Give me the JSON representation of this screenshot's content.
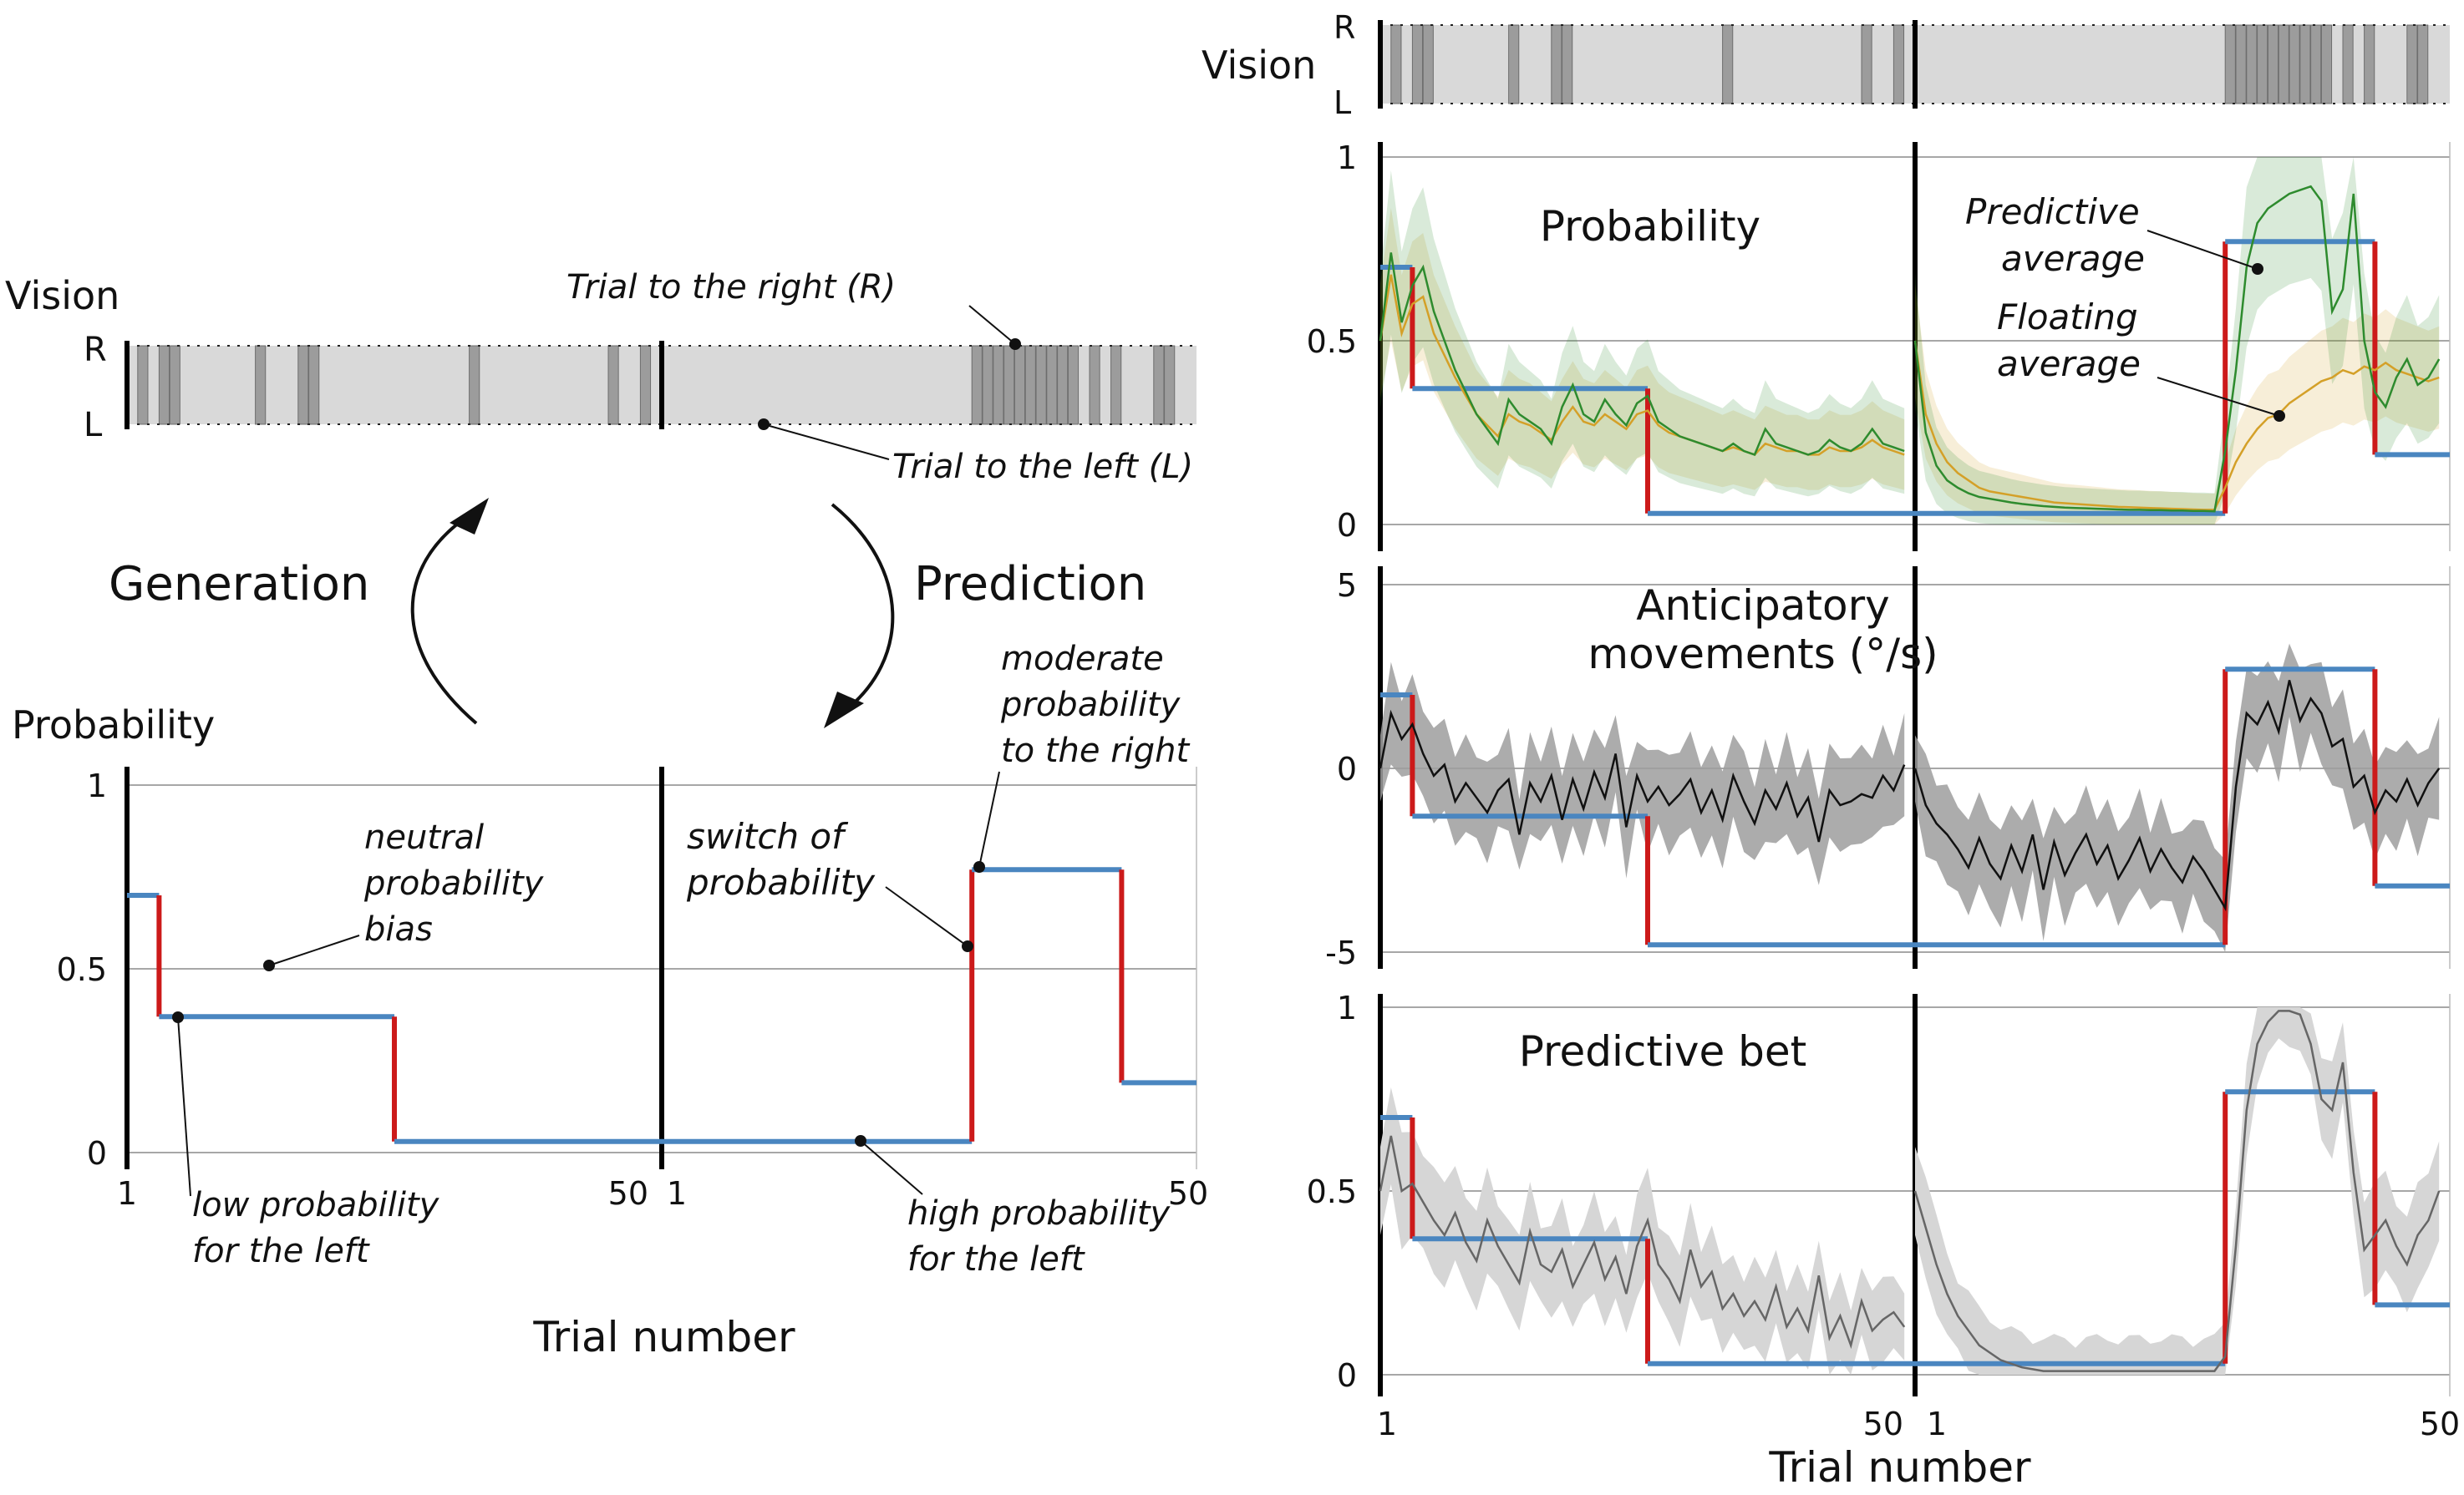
{
  "labels": {
    "vision": "Vision",
    "r": "R",
    "l": "L",
    "probability": "Probability",
    "trial_number": "Trial number",
    "generation": "Generation",
    "prediction": "Prediction",
    "ann_right": "Trial to the right (R)",
    "ann_left": "Trial to the left (L)",
    "ann_neutral": [
      "neutral",
      "probability",
      "bias"
    ],
    "ann_switch": [
      "switch of",
      "probability"
    ],
    "ann_moderate": [
      "moderate",
      "probability",
      "to the right"
    ],
    "ann_low": [
      "low probability",
      "for the left"
    ],
    "ann_high": [
      "high probability",
      "for the left"
    ],
    "panel_prob": "Probability",
    "panel_antic": [
      "Anticipatory",
      "movements (°/s)"
    ],
    "panel_bet": "Predictive bet",
    "ann_pred_avg": [
      "Predictive",
      "average"
    ],
    "ann_float_avg": [
      "Floating",
      "average"
    ]
  },
  "colors": {
    "blue": "#4a86c0",
    "red": "#cc1a1a",
    "green": "#2e8b2e",
    "orange": "#d4a028",
    "grey_band": "#9e9e9e",
    "light_band": "#d6d6d6",
    "vision_bg": "#d9d9d9",
    "vision_right": "#9c9c9c"
  },
  "chart_data": [
    {
      "id": "left-schematic",
      "type": "line",
      "xlabel": "Trial number",
      "ylabel": "Probability",
      "ylim": [
        0,
        1
      ],
      "yticks": [
        "0",
        "0.5",
        "1"
      ],
      "xticks": [
        "1",
        "50",
        "1",
        "50"
      ],
      "blocks": 2,
      "trials_per_block": 50,
      "true_probability": [
        {
          "block": 1,
          "from": 1,
          "to": 4,
          "p": 0.7
        },
        {
          "block": 1,
          "from": 4,
          "to": 26,
          "p": 0.37
        },
        {
          "block": 1,
          "from": 26,
          "to": 51,
          "p": 0.03
        },
        {
          "block": 2,
          "from": 1,
          "to": 30,
          "p": 0.03
        },
        {
          "block": 2,
          "from": 30,
          "to": 44,
          "p": 0.77
        },
        {
          "block": 2,
          "from": 44,
          "to": 51,
          "p": 0.19
        }
      ]
    },
    {
      "id": "vision-sequence",
      "type": "heatmap",
      "right_trials_block1": [
        2,
        4,
        5,
        13,
        17,
        18,
        33,
        46,
        49
      ],
      "right_trials_block2": [
        30,
        31,
        32,
        33,
        34,
        35,
        36,
        37,
        38,
        39,
        41,
        43,
        47,
        48
      ]
    },
    {
      "id": "probability-panel",
      "type": "line",
      "title": "Probability",
      "ylim": [
        0,
        1
      ],
      "yticks": [
        "0",
        "0.5",
        "1"
      ],
      "series": [
        {
          "name": "Predictive average",
          "block1": [
            0.5,
            0.74,
            0.55,
            0.65,
            0.7,
            0.58,
            0.5,
            0.42,
            0.36,
            0.3,
            0.26,
            0.22,
            0.34,
            0.3,
            0.28,
            0.26,
            0.22,
            0.32,
            0.38,
            0.3,
            0.28,
            0.34,
            0.3,
            0.27,
            0.33,
            0.35,
            0.28,
            0.26,
            0.24,
            0.23,
            0.22,
            0.21,
            0.2,
            0.22,
            0.2,
            0.19,
            0.26,
            0.22,
            0.21,
            0.2,
            0.19,
            0.2,
            0.23,
            0.21,
            0.2,
            0.22,
            0.26,
            0.22,
            0.21,
            0.2
          ],
          "block2": [
            0.5,
            0.25,
            0.16,
            0.12,
            0.1,
            0.085,
            0.075,
            0.07,
            0.065,
            0.06,
            0.056,
            0.053,
            0.05,
            0.048,
            0.046,
            0.045,
            0.044,
            0.043,
            0.042,
            0.041,
            0.04,
            0.04,
            0.039,
            0.039,
            0.038,
            0.038,
            0.037,
            0.037,
            0.036,
            0.2,
            0.42,
            0.7,
            0.82,
            0.86,
            0.88,
            0.9,
            0.91,
            0.92,
            0.88,
            0.58,
            0.64,
            0.9,
            0.5,
            0.36,
            0.32,
            0.4,
            0.45,
            0.38,
            0.4,
            0.45
          ]
        },
        {
          "name": "Floating average",
          "block1": [
            0.5,
            0.68,
            0.52,
            0.6,
            0.62,
            0.52,
            0.46,
            0.4,
            0.35,
            0.3,
            0.27,
            0.24,
            0.3,
            0.28,
            0.27,
            0.25,
            0.23,
            0.28,
            0.32,
            0.28,
            0.27,
            0.3,
            0.28,
            0.26,
            0.3,
            0.31,
            0.27,
            0.25,
            0.24,
            0.23,
            0.22,
            0.21,
            0.2,
            0.21,
            0.2,
            0.19,
            0.22,
            0.21,
            0.2,
            0.2,
            0.19,
            0.19,
            0.21,
            0.2,
            0.2,
            0.21,
            0.23,
            0.21,
            0.2,
            0.19
          ],
          "block2": [
            0.5,
            0.3,
            0.22,
            0.17,
            0.14,
            0.12,
            0.1,
            0.09,
            0.085,
            0.08,
            0.075,
            0.07,
            0.065,
            0.06,
            0.058,
            0.056,
            0.054,
            0.052,
            0.05,
            0.048,
            0.047,
            0.046,
            0.045,
            0.044,
            0.043,
            0.042,
            0.041,
            0.04,
            0.04,
            0.1,
            0.17,
            0.22,
            0.26,
            0.29,
            0.3,
            0.33,
            0.35,
            0.37,
            0.39,
            0.4,
            0.42,
            0.41,
            0.43,
            0.42,
            0.44,
            0.42,
            0.41,
            0.4,
            0.39,
            0.4
          ]
        }
      ]
    },
    {
      "id": "anticipatory-panel",
      "type": "line",
      "title": "Anticipatory movements (°/s)",
      "ylim": [
        -5,
        5
      ],
      "yticks": [
        "-5",
        "0",
        "5"
      ],
      "true_values": [
        2,
        -1.3,
        -4.8,
        -4.8,
        2.7,
        -3.2
      ],
      "series": [
        {
          "name": "mean",
          "block1": [
            0,
            1.5,
            0.8,
            1.2,
            0.4,
            -0.2,
            0.1,
            -0.9,
            -0.4,
            -0.8,
            -1.2,
            -0.6,
            -0.3,
            -1.8,
            -0.4,
            -0.9,
            -0.2,
            -1.4,
            -0.3,
            -1.1,
            -0.1,
            -0.8,
            0.4,
            -1.6,
            -0.2,
            -0.9,
            -0.5,
            -1.0,
            -0.7,
            -0.3,
            -1.2,
            -0.6,
            -1.4,
            -0.2,
            -0.9,
            -1.5,
            -0.6,
            -1.1,
            -0.4,
            -1.3,
            -0.8,
            -2.0,
            -0.6,
            -1.0,
            -0.9,
            -0.7,
            -0.8,
            -0.2,
            -0.6,
            0.1
          ],
          "block2": [
            0,
            -1.0,
            -1.5,
            -1.8,
            -2.2,
            -2.7,
            -1.9,
            -2.6,
            -3.0,
            -2.1,
            -2.8,
            -1.8,
            -3.3,
            -2.0,
            -2.9,
            -2.3,
            -1.8,
            -2.6,
            -2.1,
            -3.0,
            -2.5,
            -1.9,
            -2.8,
            -2.2,
            -2.7,
            -3.1,
            -2.4,
            -2.8,
            -3.3,
            -3.8,
            -0.5,
            1.5,
            1.2,
            1.8,
            1.0,
            2.4,
            1.3,
            1.9,
            1.5,
            0.6,
            0.8,
            -0.5,
            -0.2,
            -1.2,
            -0.6,
            -0.9,
            -0.3,
            -1.0,
            -0.4,
            0.0
          ]
        }
      ]
    },
    {
      "id": "bet-panel",
      "type": "line",
      "title": "Predictive bet",
      "ylim": [
        0,
        1
      ],
      "yticks": [
        "0",
        "0.5",
        "1"
      ],
      "series": [
        {
          "name": "mean",
          "block1": [
            0.5,
            0.65,
            0.5,
            0.52,
            0.47,
            0.42,
            0.38,
            0.44,
            0.36,
            0.31,
            0.42,
            0.35,
            0.3,
            0.25,
            0.39,
            0.3,
            0.28,
            0.34,
            0.24,
            0.3,
            0.36,
            0.26,
            0.32,
            0.22,
            0.35,
            0.42,
            0.3,
            0.26,
            0.2,
            0.34,
            0.24,
            0.28,
            0.18,
            0.22,
            0.16,
            0.2,
            0.15,
            0.24,
            0.13,
            0.18,
            0.12,
            0.27,
            0.1,
            0.16,
            0.08,
            0.2,
            0.12,
            0.15,
            0.17,
            0.13
          ],
          "block2": [
            0.5,
            0.4,
            0.3,
            0.22,
            0.16,
            0.12,
            0.08,
            0.06,
            0.04,
            0.03,
            0.02,
            0.015,
            0.01,
            0.01,
            0.01,
            0.01,
            0.01,
            0.01,
            0.01,
            0.01,
            0.01,
            0.01,
            0.01,
            0.01,
            0.01,
            0.01,
            0.01,
            0.01,
            0.01,
            0.05,
            0.35,
            0.72,
            0.9,
            0.96,
            0.99,
            0.99,
            0.98,
            0.9,
            0.75,
            0.72,
            0.85,
            0.55,
            0.34,
            0.38,
            0.42,
            0.35,
            0.3,
            0.38,
            0.42,
            0.5
          ]
        }
      ]
    }
  ]
}
